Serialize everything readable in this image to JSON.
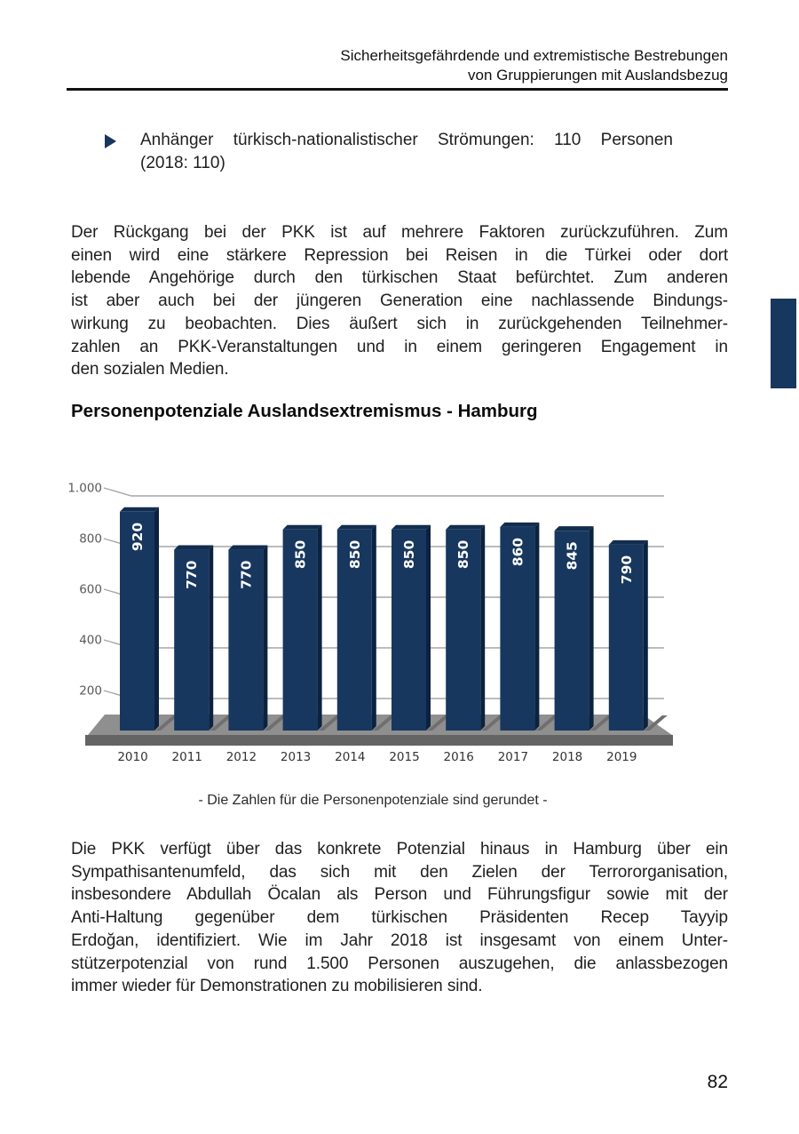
{
  "page": {
    "header": {
      "line1": "Sicherheitsgefährdende und extremistische Bestrebungen",
      "line2": "von Gruppierungen mit Auslandsbezug"
    },
    "bullet": {
      "line1": "Anhänger türkisch-nationalistischer Strömungen: 110 Personen",
      "line2": "(2018: 110)"
    },
    "paragraph1_lines": [
      "Der Rückgang bei der PKK ist auf mehrere Faktoren zurückzuführen. Zum",
      "einen wird eine stärkere Repression bei Reisen in die Türkei oder dort",
      "lebende Angehörige durch den türkischen Staat befürchtet. Zum anderen",
      "ist aber auch bei der jüngeren Generation eine nachlassende Bindungs-",
      "wirkung zu beobachten. Dies äußert sich in zurückgehenden Teilnehmer-",
      "zahlen an PKK-Veranstaltungen und in einem geringeren Engagement in",
      "den sozialen Medien."
    ],
    "section_heading": "Personenpotenziale Auslandsextremismus - Hamburg",
    "chart_caption": "- Die Zahlen für die Personenpotenziale sind gerundet -",
    "paragraph2_lines": [
      "Die PKK verfügt über das konkrete Potenzial hinaus in Hamburg über ein",
      "Sympathisantenumfeld, das sich mit den Zielen der Terrororganisation,",
      "insbesondere Abdullah Öcalan als Person und Führungsfigur sowie mit der",
      "Anti-Haltung gegenüber dem türkischen Präsidenten Recep Tayyip",
      "Erdoğan, identifiziert. Wie im Jahr 2018 ist insgesamt von einem Unter-",
      "stützerpotenzial von rund 1.500 Personen auszugehen, die anlassbezogen",
      "immer wieder für Demonstrationen zu mobilisieren sind."
    ],
    "page_number": "82"
  },
  "colors": {
    "accent_navy": "#17375E",
    "bar_face": "#17375E",
    "bar_side": "#0B2240",
    "bar_top": "#122D4F",
    "bar_label": "#FFFFFF",
    "floor_top": "#8F8F8F",
    "floor_front": "#646464",
    "floor_shadow": "#6F6F6F",
    "gridline": "#A6A6A6",
    "axis_text": "#595959",
    "xaxis_text": "#333333"
  },
  "chart_data": {
    "type": "bar",
    "style": "3d-column",
    "title": "Personenpotenziale Auslandsextremismus - Hamburg",
    "caption": "- Die Zahlen für die Personenpotenziale sind gerundet -",
    "categories": [
      "2010",
      "2011",
      "2012",
      "2013",
      "2014",
      "2015",
      "2016",
      "2017",
      "2018",
      "2019"
    ],
    "values": [
      920,
      770,
      770,
      850,
      850,
      850,
      850,
      860,
      845,
      790
    ],
    "xlabel": "",
    "ylabel": "",
    "ylim": [
      0,
      1000
    ],
    "yticks": [
      {
        "value": 1000,
        "label": "1.000"
      },
      {
        "value": 800,
        "label": "800"
      },
      {
        "value": 600,
        "label": "600"
      },
      {
        "value": 400,
        "label": "400"
      },
      {
        "value": 200,
        "label": "200"
      }
    ],
    "grid": true,
    "legend": false,
    "bar_value_labels_rotated_90": true
  }
}
